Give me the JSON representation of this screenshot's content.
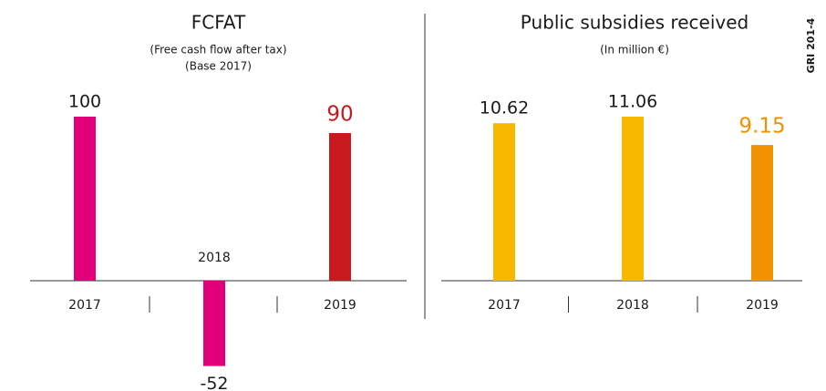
{
  "side_label": "GRI 201-4",
  "chart_data": [
    {
      "type": "bar",
      "title": "FCFAT",
      "subtitle": [
        "(Free cash flow after tax)",
        "(Base 2017)"
      ],
      "categories": [
        "2017",
        "2018",
        "2019"
      ],
      "values": [
        100,
        -52,
        90
      ],
      "colors": [
        "#e2007a",
        "#e2007a",
        "#c8191e"
      ]
    },
    {
      "type": "bar",
      "title": "Public subsidies received",
      "subtitle": [
        "(In million €)"
      ],
      "categories": [
        "2017",
        "2018",
        "2019"
      ],
      "values": [
        10.62,
        11.06,
        9.15
      ],
      "colors": [
        "#f9b800",
        "#f9b800",
        "#f39200"
      ]
    }
  ]
}
